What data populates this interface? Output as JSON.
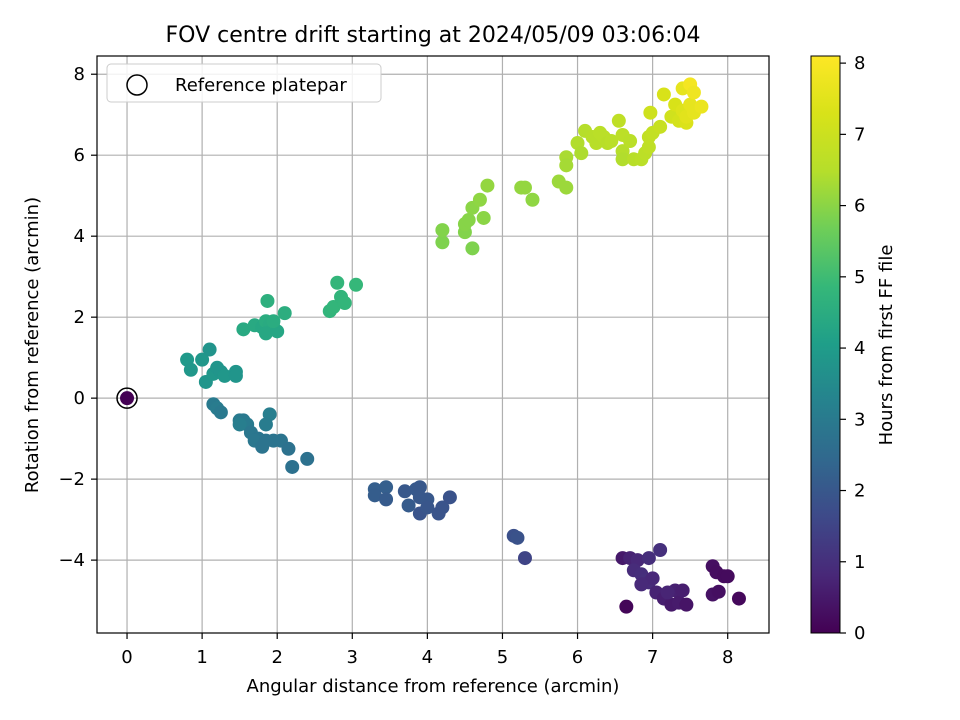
{
  "chart_data": {
    "type": "scatter",
    "title": "FOV centre drift starting at 2024/05/09 03:06:04",
    "xlabel": "Angular distance from reference (arcmin)",
    "ylabel": "Rotation from reference (arcmin)",
    "xlim": [
      -0.4,
      8.55
    ],
    "ylim": [
      -5.8,
      8.45
    ],
    "xticks": [
      0,
      1,
      2,
      3,
      4,
      5,
      6,
      7,
      8
    ],
    "yticks": [
      -4,
      -2,
      0,
      2,
      4,
      6,
      8
    ],
    "grid": true,
    "legend": {
      "placement": "top-left",
      "entries": [
        "Reference platepar"
      ]
    },
    "colorbar": {
      "label": "Hours from first FF file",
      "colormap": "viridis",
      "range": [
        0,
        8.1
      ],
      "ticks": [
        0,
        1,
        2,
        3,
        4,
        5,
        6,
        7,
        8
      ]
    },
    "reference_point": {
      "x": 0,
      "y": 0,
      "c": 0
    },
    "points": [
      [
        6.65,
        -5.15,
        0.1
      ],
      [
        6.6,
        -3.95,
        0.5
      ],
      [
        6.7,
        -3.95,
        0.7
      ],
      [
        6.8,
        -4.0,
        0.8
      ],
      [
        6.75,
        -4.25,
        0.9
      ],
      [
        6.85,
        -4.35,
        0.95
      ],
      [
        6.9,
        -4.5,
        1.0
      ],
      [
        6.95,
        -4.55,
        0.9
      ],
      [
        7.0,
        -4.45,
        0.8
      ],
      [
        6.85,
        -4.6,
        0.85
      ],
      [
        6.95,
        -3.95,
        0.95
      ],
      [
        7.1,
        -3.75,
        1.0
      ],
      [
        7.05,
        -4.8,
        0.7
      ],
      [
        7.15,
        -4.95,
        0.6
      ],
      [
        7.25,
        -5.1,
        0.5
      ],
      [
        7.3,
        -4.75,
        0.65
      ],
      [
        7.35,
        -5.05,
        0.55
      ],
      [
        7.4,
        -4.75,
        0.6
      ],
      [
        7.45,
        -5.1,
        0.4
      ],
      [
        7.2,
        -4.8,
        0.75
      ],
      [
        7.8,
        -4.15,
        0.3
      ],
      [
        7.85,
        -4.3,
        0.25
      ],
      [
        7.95,
        -4.4,
        0.2
      ],
      [
        8.0,
        -4.4,
        0.2
      ],
      [
        7.8,
        -4.85,
        0.35
      ],
      [
        7.88,
        -4.78,
        0.3
      ],
      [
        8.15,
        -4.95,
        0.15
      ],
      [
        5.15,
        -3.4,
        1.8
      ],
      [
        5.2,
        -3.45,
        1.85
      ],
      [
        5.3,
        -3.95,
        1.5
      ],
      [
        3.3,
        -2.25,
        2.2
      ],
      [
        3.3,
        -2.4,
        2.15
      ],
      [
        3.45,
        -2.2,
        2.2
      ],
      [
        3.45,
        -2.5,
        2.1
      ],
      [
        3.7,
        -2.3,
        2.0
      ],
      [
        3.75,
        -2.65,
        2.1
      ],
      [
        3.85,
        -2.25,
        2.05
      ],
      [
        3.9,
        -2.2,
        2.0
      ],
      [
        3.9,
        -2.45,
        2.0
      ],
      [
        4.0,
        -2.5,
        2.0
      ],
      [
        3.9,
        -2.85,
        1.9
      ],
      [
        4.0,
        -2.7,
        1.95
      ],
      [
        4.15,
        -2.85,
        1.9
      ],
      [
        4.2,
        -2.7,
        1.9
      ],
      [
        4.3,
        -2.45,
        1.85
      ],
      [
        1.15,
        -0.15,
        3.0
      ],
      [
        1.2,
        -0.25,
        3.05
      ],
      [
        1.25,
        -0.35,
        2.95
      ],
      [
        1.5,
        -0.55,
        3.0
      ],
      [
        1.55,
        -0.55,
        2.95
      ],
      [
        1.6,
        -0.65,
        3.0
      ],
      [
        1.5,
        -0.65,
        3.1
      ],
      [
        1.65,
        -0.85,
        2.9
      ],
      [
        1.75,
        -1.0,
        2.85
      ],
      [
        1.7,
        -1.05,
        2.9
      ],
      [
        1.8,
        -1.2,
        2.8
      ],
      [
        1.85,
        -1.05,
        2.8
      ],
      [
        1.9,
        -0.4,
        3.1
      ],
      [
        1.85,
        -0.65,
        3.05
      ],
      [
        1.95,
        -1.05,
        2.8
      ],
      [
        2.05,
        -1.05,
        2.8
      ],
      [
        2.15,
        -1.25,
        2.75
      ],
      [
        2.2,
        -1.7,
        2.7
      ],
      [
        2.4,
        -1.5,
        2.7
      ],
      [
        0.8,
        0.95,
        3.9
      ],
      [
        0.85,
        0.7,
        3.85
      ],
      [
        1.0,
        0.95,
        3.85
      ],
      [
        1.05,
        0.4,
        3.8
      ],
      [
        1.1,
        1.2,
        3.75
      ],
      [
        1.15,
        0.6,
        3.85
      ],
      [
        1.2,
        0.75,
        3.8
      ],
      [
        1.25,
        0.65,
        3.8
      ],
      [
        1.3,
        0.55,
        3.85
      ],
      [
        1.45,
        0.65,
        3.8
      ],
      [
        1.45,
        0.55,
        3.8
      ],
      [
        1.55,
        1.7,
        4.4
      ],
      [
        1.7,
        1.8,
        4.4
      ],
      [
        1.8,
        1.75,
        4.35
      ],
      [
        1.85,
        1.9,
        4.5
      ],
      [
        1.9,
        1.8,
        4.45
      ],
      [
        1.95,
        1.75,
        4.4
      ],
      [
        1.85,
        1.6,
        4.35
      ],
      [
        2.0,
        1.65,
        4.3
      ],
      [
        1.95,
        1.9,
        4.5
      ],
      [
        1.87,
        2.4,
        4.6
      ],
      [
        2.1,
        2.1,
        4.55
      ],
      [
        2.7,
        2.15,
        4.75
      ],
      [
        2.75,
        2.25,
        4.8
      ],
      [
        2.8,
        2.85,
        4.8
      ],
      [
        2.85,
        2.5,
        4.75
      ],
      [
        2.9,
        2.35,
        4.8
      ],
      [
        3.05,
        2.8,
        4.85
      ],
      [
        4.2,
        3.85,
        5.85
      ],
      [
        4.2,
        4.15,
        5.9
      ],
      [
        4.5,
        4.1,
        5.9
      ],
      [
        4.5,
        4.3,
        5.95
      ],
      [
        4.55,
        4.4,
        5.95
      ],
      [
        4.6,
        4.7,
        6.0
      ],
      [
        4.6,
        3.7,
        5.85
      ],
      [
        4.7,
        4.9,
        6.05
      ],
      [
        4.75,
        4.45,
        6.0
      ],
      [
        4.8,
        5.25,
        6.1
      ],
      [
        5.25,
        5.2,
        6.1
      ],
      [
        5.3,
        5.2,
        6.1
      ],
      [
        5.4,
        4.9,
        6.05
      ],
      [
        5.75,
        5.35,
        6.2
      ],
      [
        5.85,
        5.2,
        6.2
      ],
      [
        5.85,
        5.95,
        6.35
      ],
      [
        5.85,
        5.75,
        6.3
      ],
      [
        6.0,
        6.3,
        6.45
      ],
      [
        6.05,
        6.05,
        6.4
      ],
      [
        6.1,
        6.6,
        6.5
      ],
      [
        6.2,
        6.45,
        6.55
      ],
      [
        6.25,
        6.3,
        6.55
      ],
      [
        6.3,
        6.55,
        6.6
      ],
      [
        6.35,
        6.45,
        6.6
      ],
      [
        6.4,
        6.3,
        6.55
      ],
      [
        6.45,
        6.35,
        6.6
      ],
      [
        6.55,
        6.85,
        6.7
      ],
      [
        6.6,
        6.5,
        6.65
      ],
      [
        6.6,
        6.1,
        6.5
      ],
      [
        6.6,
        5.9,
        6.45
      ],
      [
        6.7,
        6.35,
        6.6
      ],
      [
        6.75,
        5.9,
        6.55
      ],
      [
        6.85,
        5.9,
        6.6
      ],
      [
        6.9,
        6.05,
        6.65
      ],
      [
        6.95,
        6.2,
        6.7
      ],
      [
        6.95,
        6.45,
        6.75
      ],
      [
        7.0,
        6.55,
        6.8
      ],
      [
        6.97,
        7.05,
        7.05
      ],
      [
        7.1,
        6.7,
        6.9
      ],
      [
        7.15,
        7.5,
        7.3
      ],
      [
        7.25,
        6.95,
        7.1
      ],
      [
        7.3,
        7.25,
        7.3
      ],
      [
        7.35,
        6.85,
        7.2
      ],
      [
        7.4,
        7.65,
        7.6
      ],
      [
        7.4,
        7.1,
        7.4
      ],
      [
        7.45,
        6.8,
        7.35
      ],
      [
        7.45,
        6.95,
        7.5
      ],
      [
        7.5,
        7.25,
        7.6
      ],
      [
        7.5,
        7.75,
        7.9
      ],
      [
        7.55,
        7.05,
        7.6
      ],
      [
        7.55,
        7.55,
        7.8
      ],
      [
        7.65,
        7.2,
        7.7
      ]
    ]
  }
}
